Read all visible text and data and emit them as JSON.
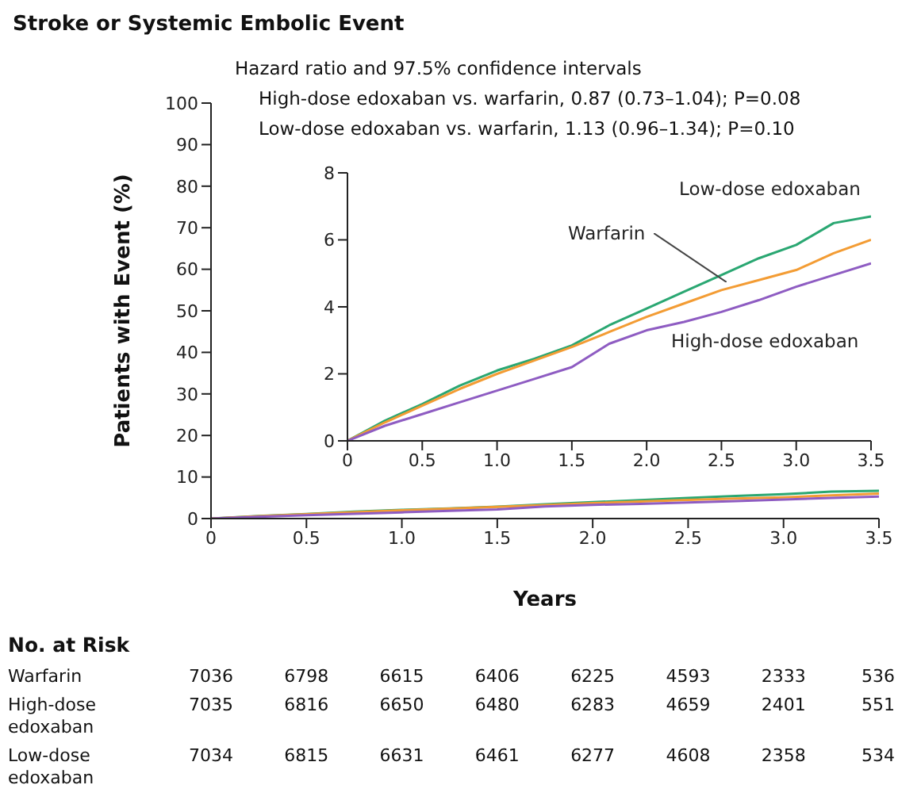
{
  "chart_data": [
    {
      "type": "line",
      "title": "Stroke or Systemic Embolic Event",
      "ylabel": "Patients with Event (%)",
      "xlabel": "Years",
      "x": [
        0,
        0.25,
        0.5,
        0.75,
        1,
        1.25,
        1.5,
        1.75,
        2,
        2.25,
        2.5,
        2.75,
        3,
        3.25,
        3.5
      ],
      "series": [
        {
          "color": "#2aa772",
          "values": [
            0,
            0.6,
            1.1,
            1.65,
            2.1,
            2.45,
            2.85,
            3.45,
            3.95,
            4.45,
            4.95,
            5.45,
            5.85,
            6.5,
            6.7
          ]
        },
        {
          "color": "#f39c34",
          "values": [
            0,
            0.55,
            1.05,
            1.55,
            2.0,
            2.4,
            2.8,
            3.25,
            3.7,
            4.1,
            4.5,
            4.8,
            5.1,
            5.6,
            6.0
          ]
        },
        {
          "color": "#8e5cc2",
          "values": [
            0,
            0.45,
            0.8,
            1.15,
            1.5,
            1.85,
            2.2,
            2.9,
            3.3,
            3.55,
            3.85,
            4.2,
            4.6,
            4.95,
            5.3
          ]
        }
      ],
      "xlim": [
        0,
        3.5
      ],
      "xticks": [
        0,
        0.5,
        {
          "value": 1,
          "label": "1.0"
        },
        1.5,
        {
          "value": 2,
          "label": "2.0"
        },
        2.5,
        {
          "value": 3,
          "label": "3.0"
        },
        3.5
      ],
      "ylim": [
        0,
        100
      ],
      "yticks": [
        0,
        10,
        20,
        30,
        40,
        50,
        60,
        70,
        80,
        90,
        100
      ],
      "grid": false,
      "legend": false,
      "annotations": [
        "Hazard ratio and 97.5% confidence intervals",
        "High-dose edoxaban vs. warfarin, 0.87 (0.73–1.04); P=0.08",
        "Low-dose edoxaban vs. warfarin, 1.13 (0.96–1.34); P=0.10",
        "No. at Risk",
        "Warfarin",
        "7036",
        "6798",
        "6615",
        "6406",
        "6225",
        "4593",
        "2333",
        "536",
        "High-dose edoxaban",
        "7035",
        "6816",
        "6650",
        "6480",
        "6283",
        "4659",
        "2401",
        "551",
        "Low-dose edoxaban",
        "7034",
        "6815",
        "6631",
        "6461",
        "6277",
        "4608",
        "2358",
        "534"
      ]
    },
    {
      "type": "line",
      "x": [
        0,
        0.25,
        0.5,
        0.75,
        1,
        1.25,
        1.5,
        1.75,
        2,
        2.25,
        2.5,
        2.75,
        3,
        3.25,
        3.5
      ],
      "series": [
        {
          "name": "Low-dose edoxaban",
          "color": "#2aa772",
          "values": [
            0,
            0.6,
            1.1,
            1.65,
            2.1,
            2.45,
            2.85,
            3.45,
            3.95,
            4.45,
            4.95,
            5.45,
            5.85,
            6.5,
            6.7
          ]
        },
        {
          "name": "Warfarin",
          "color": "#f39c34",
          "values": [
            0,
            0.55,
            1.05,
            1.55,
            2.0,
            2.4,
            2.8,
            3.25,
            3.7,
            4.1,
            4.5,
            4.8,
            5.1,
            5.6,
            6.0
          ]
        },
        {
          "name": "High-dose edoxaban",
          "color": "#8e5cc2",
          "values": [
            0,
            0.45,
            0.8,
            1.15,
            1.5,
            1.85,
            2.2,
            2.9,
            3.3,
            3.55,
            3.85,
            4.2,
            4.6,
            4.95,
            5.3
          ]
        }
      ],
      "xlim": [
        0,
        3.5
      ],
      "xticks": [
        0,
        0.5,
        {
          "value": 1,
          "label": "1.0"
        },
        1.5,
        {
          "value": 2,
          "label": "2.0"
        },
        2.5,
        {
          "value": 3,
          "label": "3.0"
        },
        3.5
      ],
      "ylim": [
        0,
        8
      ],
      "yticks": [
        0,
        2,
        4,
        6,
        8
      ],
      "grid": false,
      "legend": false
    }
  ]
}
